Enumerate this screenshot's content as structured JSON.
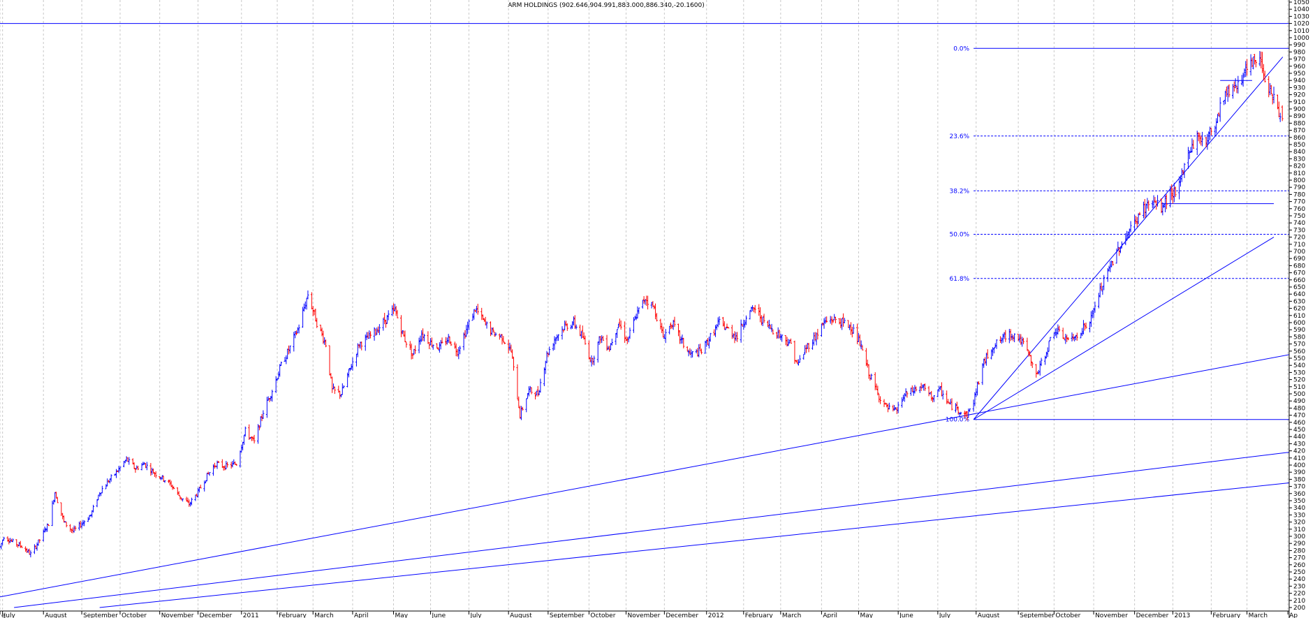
{
  "chart_data": {
    "type": "candlestick",
    "title": "ARM HOLDINGS (902.646,904.991,883.000,886.340,-20.1600)",
    "ylim": [
      200,
      1050
    ],
    "y_ticks": [
      200,
      210,
      220,
      230,
      240,
      250,
      260,
      270,
      280,
      290,
      300,
      310,
      320,
      330,
      340,
      350,
      360,
      370,
      380,
      390,
      400,
      410,
      420,
      430,
      440,
      450,
      460,
      470,
      480,
      490,
      500,
      510,
      520,
      530,
      540,
      550,
      560,
      570,
      580,
      590,
      600,
      610,
      620,
      630,
      640,
      650,
      660,
      670,
      680,
      690,
      700,
      710,
      720,
      730,
      740,
      750,
      760,
      770,
      780,
      790,
      800,
      810,
      820,
      830,
      840,
      850,
      860,
      870,
      880,
      890,
      900,
      910,
      920,
      930,
      940,
      950,
      960,
      970,
      980,
      990,
      1000,
      1010,
      1020,
      1030,
      1040,
      1050
    ],
    "x_axis": {
      "range": [
        "2010-06-29",
        "2013-04-03"
      ],
      "tick_labels": [
        {
          "date": "2010-06-29",
          "label": "e"
        },
        {
          "date": "2010-07-01",
          "label": "July"
        },
        {
          "date": "2010-08-02",
          "label": "August"
        },
        {
          "date": "2010-09-01",
          "label": "September"
        },
        {
          "date": "2010-10-01",
          "label": "October"
        },
        {
          "date": "2010-11-01",
          "label": "November"
        },
        {
          "date": "2010-12-01",
          "label": "December"
        },
        {
          "date": "2011-01-04",
          "label": "2011"
        },
        {
          "date": "2011-02-01",
          "label": "February"
        },
        {
          "date": "2011-03-01",
          "label": "March"
        },
        {
          "date": "2011-04-01",
          "label": "April"
        },
        {
          "date": "2011-05-03",
          "label": "May"
        },
        {
          "date": "2011-06-01",
          "label": "June"
        },
        {
          "date": "2011-07-01",
          "label": "July"
        },
        {
          "date": "2011-08-01",
          "label": "August"
        },
        {
          "date": "2011-09-01",
          "label": "September"
        },
        {
          "date": "2011-10-03",
          "label": "October"
        },
        {
          "date": "2011-11-01",
          "label": "November"
        },
        {
          "date": "2011-12-01",
          "label": "December"
        },
        {
          "date": "2012-01-03",
          "label": "2012"
        },
        {
          "date": "2012-02-01",
          "label": "February"
        },
        {
          "date": "2012-03-01",
          "label": "March"
        },
        {
          "date": "2012-04-02",
          "label": "April"
        },
        {
          "date": "2012-05-01",
          "label": "May"
        },
        {
          "date": "2012-06-01",
          "label": "June"
        },
        {
          "date": "2012-07-02",
          "label": "July"
        },
        {
          "date": "2012-08-01",
          "label": "August"
        },
        {
          "date": "2012-09-03",
          "label": "September"
        },
        {
          "date": "2012-10-01",
          "label": "October"
        },
        {
          "date": "2012-11-01",
          "label": "November"
        },
        {
          "date": "2012-12-03",
          "label": "December"
        },
        {
          "date": "2013-01-02",
          "label": "2013"
        },
        {
          "date": "2013-02-01",
          "label": "February"
        },
        {
          "date": "2013-03-01",
          "label": "March"
        },
        {
          "date": "2013-04-02",
          "label": "Ap"
        }
      ]
    },
    "price_path": [
      [
        "2010-06-29",
        285
      ],
      [
        "2010-07-02",
        300
      ],
      [
        "2010-07-09",
        292
      ],
      [
        "2010-07-16",
        286
      ],
      [
        "2010-07-23",
        275
      ],
      [
        "2010-07-30",
        295
      ],
      [
        "2010-08-06",
        318
      ],
      [
        "2010-08-11",
        362
      ],
      [
        "2010-08-18",
        320
      ],
      [
        "2010-08-25",
        307
      ],
      [
        "2010-09-01",
        318
      ],
      [
        "2010-09-08",
        330
      ],
      [
        "2010-09-15",
        362
      ],
      [
        "2010-09-22",
        378
      ],
      [
        "2010-09-29",
        392
      ],
      [
        "2010-10-06",
        408
      ],
      [
        "2010-10-13",
        395
      ],
      [
        "2010-10-20",
        402
      ],
      [
        "2010-10-27",
        390
      ],
      [
        "2010-11-03",
        382
      ],
      [
        "2010-11-10",
        372
      ],
      [
        "2010-11-17",
        355
      ],
      [
        "2010-11-24",
        345
      ],
      [
        "2010-12-01",
        362
      ],
      [
        "2010-12-08",
        385
      ],
      [
        "2010-12-15",
        402
      ],
      [
        "2010-12-22",
        398
      ],
      [
        "2010-12-31",
        402
      ],
      [
        "2011-01-07",
        448
      ],
      [
        "2011-01-14",
        432
      ],
      [
        "2011-01-21",
        475
      ],
      [
        "2011-01-28",
        505
      ],
      [
        "2011-02-04",
        540
      ],
      [
        "2011-02-11",
        565
      ],
      [
        "2011-02-18",
        595
      ],
      [
        "2011-02-25",
        640
      ],
      [
        "2011-03-04",
        600
      ],
      [
        "2011-03-11",
        570
      ],
      [
        "2011-03-16",
        505
      ],
      [
        "2011-03-23",
        500
      ],
      [
        "2011-03-30",
        535
      ],
      [
        "2011-04-06",
        570
      ],
      [
        "2011-04-13",
        578
      ],
      [
        "2011-04-20",
        590
      ],
      [
        "2011-04-27",
        605
      ],
      [
        "2011-05-04",
        618
      ],
      [
        "2011-05-11",
        580
      ],
      [
        "2011-05-18",
        555
      ],
      [
        "2011-05-25",
        585
      ],
      [
        "2011-06-01",
        572
      ],
      [
        "2011-06-08",
        565
      ],
      [
        "2011-06-15",
        578
      ],
      [
        "2011-06-22",
        560
      ],
      [
        "2011-06-29",
        590
      ],
      [
        "2011-07-06",
        620
      ],
      [
        "2011-07-13",
        600
      ],
      [
        "2011-07-20",
        585
      ],
      [
        "2011-07-27",
        580
      ],
      [
        "2011-08-03",
        560
      ],
      [
        "2011-08-10",
        470
      ],
      [
        "2011-08-17",
        505
      ],
      [
        "2011-08-24",
        500
      ],
      [
        "2011-08-31",
        555
      ],
      [
        "2011-09-07",
        580
      ],
      [
        "2011-09-14",
        595
      ],
      [
        "2011-09-21",
        600
      ],
      [
        "2011-09-28",
        580
      ],
      [
        "2011-10-05",
        545
      ],
      [
        "2011-10-12",
        580
      ],
      [
        "2011-10-19",
        565
      ],
      [
        "2011-10-26",
        600
      ],
      [
        "2011-11-02",
        575
      ],
      [
        "2011-11-09",
        610
      ],
      [
        "2011-11-16",
        635
      ],
      [
        "2011-11-23",
        620
      ],
      [
        "2011-11-30",
        580
      ],
      [
        "2011-12-07",
        600
      ],
      [
        "2011-12-14",
        575
      ],
      [
        "2011-12-21",
        555
      ],
      [
        "2011-12-30",
        560
      ],
      [
        "2012-01-06",
        580
      ],
      [
        "2012-01-13",
        600
      ],
      [
        "2012-01-20",
        590
      ],
      [
        "2012-01-27",
        580
      ],
      [
        "2012-02-03",
        610
      ],
      [
        "2012-02-10",
        620
      ],
      [
        "2012-02-17",
        600
      ],
      [
        "2012-02-24",
        590
      ],
      [
        "2012-03-02",
        580
      ],
      [
        "2012-03-09",
        570
      ],
      [
        "2012-03-14",
        540
      ],
      [
        "2012-03-21",
        565
      ],
      [
        "2012-03-28",
        580
      ],
      [
        "2012-04-04",
        600
      ],
      [
        "2012-04-11",
        605
      ],
      [
        "2012-04-18",
        600
      ],
      [
        "2012-04-25",
        595
      ],
      [
        "2012-05-02",
        570
      ],
      [
        "2012-05-09",
        530
      ],
      [
        "2012-05-16",
        500
      ],
      [
        "2012-05-23",
        480
      ],
      [
        "2012-05-30",
        475
      ],
      [
        "2012-06-06",
        498
      ],
      [
        "2012-06-13",
        505
      ],
      [
        "2012-06-20",
        510
      ],
      [
        "2012-06-27",
        495
      ],
      [
        "2012-07-04",
        505
      ],
      [
        "2012-07-11",
        485
      ],
      [
        "2012-07-18",
        478
      ],
      [
        "2012-07-25",
        470
      ],
      [
        "2012-07-30",
        490
      ],
      [
        "2012-08-06",
        540
      ],
      [
        "2012-08-13",
        565
      ],
      [
        "2012-08-20",
        575
      ],
      [
        "2012-08-27",
        585
      ],
      [
        "2012-09-03",
        580
      ],
      [
        "2012-09-10",
        560
      ],
      [
        "2012-09-17",
        525
      ],
      [
        "2012-09-24",
        555
      ],
      [
        "2012-10-01",
        590
      ],
      [
        "2012-10-08",
        580
      ],
      [
        "2012-10-15",
        575
      ],
      [
        "2012-10-22",
        590
      ],
      [
        "2012-10-29",
        600
      ],
      [
        "2012-11-05",
        640
      ],
      [
        "2012-11-12",
        670
      ],
      [
        "2012-11-19",
        700
      ],
      [
        "2012-11-26",
        720
      ],
      [
        "2012-12-03",
        740
      ],
      [
        "2012-12-10",
        760
      ],
      [
        "2012-12-17",
        770
      ],
      [
        "2012-12-24",
        760
      ],
      [
        "2012-12-31",
        780
      ],
      [
        "2013-01-07",
        790
      ],
      [
        "2013-01-14",
        840
      ],
      [
        "2013-01-21",
        860
      ],
      [
        "2013-01-28",
        855
      ],
      [
        "2013-02-04",
        880
      ],
      [
        "2013-02-11",
        920
      ],
      [
        "2013-02-18",
        930
      ],
      [
        "2013-02-25",
        945
      ],
      [
        "2013-03-04",
        960
      ],
      [
        "2013-03-11",
        975
      ],
      [
        "2013-03-15",
        945
      ],
      [
        "2013-03-22",
        915
      ],
      [
        "2013-03-27",
        886
      ]
    ],
    "last_bar": {
      "open": 902.646,
      "high": 904.991,
      "low": 883.0,
      "close": 886.34,
      "change": -20.16
    },
    "fibonacci": {
      "levels": [
        {
          "label": "0.0%",
          "price": 985
        },
        {
          "label": "23.6%",
          "price": 862
        },
        {
          "label": "38.2%",
          "price": 785
        },
        {
          "label": "50.0%",
          "price": 724
        },
        {
          "label": "61.8%",
          "price": 662
        },
        {
          "label": "100.0%",
          "price": 464
        }
      ]
    },
    "horizontal_lines": [
      1020
    ],
    "trendlines": [
      {
        "from": [
          "2010-06-29",
          215
        ],
        "to": [
          "2013-04-03",
          555
        ]
      },
      {
        "from": [
          "2010-07-10",
          200
        ],
        "to": [
          "2013-04-03",
          418
        ]
      },
      {
        "from": [
          "2010-09-15",
          200
        ],
        "to": [
          "2013-04-03",
          375
        ]
      },
      {
        "from": [
          "2012-07-30",
          464
        ],
        "to": [
          "2013-03-22",
          720
        ]
      },
      {
        "from": [
          "2012-07-30",
          464
        ],
        "to": [
          "2013-03-29",
          973
        ]
      },
      {
        "from": [
          "2012-12-24",
          767
        ],
        "to": [
          "2013-03-22",
          767
        ]
      },
      {
        "from": [
          "2013-02-08",
          940
        ],
        "to": [
          "2013-03-05",
          940
        ]
      }
    ],
    "colors": {
      "up": "#0000ff",
      "down": "#ff0000",
      "lines": "#0000ff",
      "grid": "#c8c8c8",
      "background": "#ffffff"
    },
    "grid": "vertical-dashed",
    "y_axis_side": "right"
  }
}
